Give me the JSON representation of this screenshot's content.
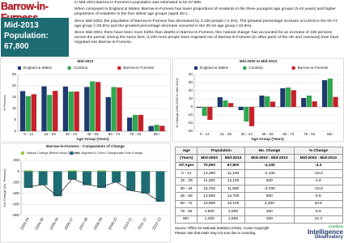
{
  "header": {
    "title": "Barrow-in-Furness",
    "box_lines": [
      "Mid-2013",
      "Population:",
      "67,800"
    ]
  },
  "paragraphs": [
    "In Mid-2013 Barrow-in-Furness's population was estimated to be 67,800.",
    "When compared to England & Wales, Barrow-in-Furness has lower proportions of residents in the three youngest age groups (0-44 years) and higher proportions of residents in the four oldest age groups (aged 45+).",
    "Since Mid-2003, the population of Barrow-in-Furness has decreased by 3,100 people (-4.3%). The greatest percentage increase occurred in the 60-74 age group (+20.6%) and the greatest percentage decrease occurred in the 30-44 age group (-23.8%).",
    "Since Mid-2003, there have been more births than deaths in Barrow-in-Furness, this 'natural change' has accounted for an increase of 100 persons across the period. During the same time, 3,100 more people have migrated out of Barrow-in-Furness (to other parts of the UK and overseas) than have migrated into Barrow-in-Furness."
  ],
  "chart_data": [
    {
      "type": "bar",
      "title": "Mid-2013",
      "categories": [
        "0 - 14",
        "15 - 29",
        "30 - 44",
        "45 - 59",
        "60 - 74",
        "75 - 84",
        "85+"
      ],
      "series": [
        {
          "name": "England & Wales",
          "color": "#1f3a6e",
          "values": [
            17.7,
            19.8,
            19.7,
            19.5,
            15.0,
            6.0,
            2.3
          ]
        },
        {
          "name": "Cumbria",
          "color": "#2fa84f",
          "values": [
            15.5,
            16.0,
            17.5,
            22.0,
            19.5,
            7.2,
            2.8
          ]
        },
        {
          "name": "Barrow-in-Furness",
          "color": "#c8202a",
          "values": [
            16.3,
            17.8,
            17.5,
            21.7,
            19.3,
            7.2,
            2.4
          ]
        }
      ],
      "ylim": [
        0,
        25
      ],
      "yticks": [
        0,
        5,
        10,
        15,
        20,
        25
      ],
      "grid": true,
      "x_label": "Age Group (Years)",
      "y_label": "% Persons"
    },
    {
      "type": "bar",
      "title": "Mid-2003 to Mid-2013",
      "categories": [
        "0 - 14",
        "15 - 29",
        "30 - 44",
        "45 - 59",
        "60 - 74",
        "75 - 84",
        "85+"
      ],
      "series": [
        {
          "name": "England & Wales",
          "color": "#1f3a6e",
          "values": [
            -1,
            12,
            -4,
            14,
            23,
            11,
            33
          ]
        },
        {
          "name": "Cumbria",
          "color": "#2fa84f",
          "values": [
            -11,
            8,
            -18,
            13,
            24,
            14,
            35
          ]
        },
        {
          "name": "Barrow-in-Furness",
          "color": "#c8202a",
          "values": [
            -16.0,
            4.8,
            -23.8,
            6.6,
            20.6,
            6.9,
            12.3
          ]
        }
      ],
      "ylim": [
        -30,
        40
      ],
      "yticks": [
        -30,
        -20,
        -10,
        0,
        10,
        20,
        30,
        40
      ],
      "grid": true,
      "x_label": "Age Group (Years)",
      "y_label": "% Change (Mid-2003 to Mid-2013)"
    },
    {
      "type": "stacked_bar",
      "title": "Barrow-in-Furness - Components of Change",
      "categories": [
        "2003-04",
        "2004-05",
        "2005-06",
        "2006-07",
        "2007-08",
        "2008-09",
        "2009-10",
        "2010-11",
        "2011-12",
        "2012-13"
      ],
      "series": [
        {
          "name": "Natural Change (Births minus Deaths)",
          "color": "#9ccf4a",
          "kind": "bar",
          "values": [
            20,
            10,
            0,
            20,
            10,
            20,
            10,
            0,
            10,
            0
          ]
        },
        {
          "name": "Net Migration & Other Changes",
          "color": "#1d6b73",
          "kind": "bar",
          "values": [
            -300,
            -250,
            -450,
            -150,
            -250,
            -300,
            -200,
            -350,
            -400,
            -550
          ]
        },
        {
          "name": "Total Change",
          "color": "#333333",
          "kind": "line",
          "values": [
            -280,
            -240,
            -450,
            -130,
            -240,
            -280,
            -190,
            -350,
            -390,
            -550
          ]
        }
      ],
      "ylim": [
        -800,
        200
      ],
      "yticks": [
        -800,
        -600,
        -400,
        -200,
        0,
        200
      ],
      "grid": true,
      "y_label": "Net Change (No. Persons)"
    }
  ],
  "table": {
    "header_top": [
      "Age",
      "Population",
      "No. Change",
      "% Change"
    ],
    "header_sub": [
      "(Years)",
      "Mid-2003",
      "Mid-2013",
      "Mid-2003 - Mid-2013",
      "Mid-2003 - Mid-2013"
    ],
    "rows": [
      [
        "All Ages",
        "70,900",
        "67,800",
        "-3,100",
        "-4.3"
      ],
      [
        "0 - 14",
        "13,300",
        "11,100",
        "-2,100",
        "-16.0"
      ],
      [
        "15 - 29",
        "11,300",
        "12,100",
        "600",
        "4.8"
      ],
      [
        "30 - 44",
        "15,700",
        "11,900",
        "-3,700",
        "-23.8"
      ],
      [
        "45 - 59",
        "13,900",
        "14,700",
        "800",
        "6.6"
      ],
      [
        "60 - 74",
        "10,800",
        "13,100",
        "2,200",
        "20.6"
      ],
      [
        "75 - 84",
        "4,500",
        "4,900",
        "300",
        "6.9"
      ],
      [
        "85+",
        "1,400",
        "1,600",
        "200",
        "12.3"
      ]
    ]
  },
  "source": [
    "Source: Office for National Statistics (ONS), Crown Copyright",
    "Please note that totals may not sum due to rounding"
  ],
  "logo": {
    "line1": "Cumbria",
    "line2": "Intelligence",
    "line3": "Observatory"
  }
}
